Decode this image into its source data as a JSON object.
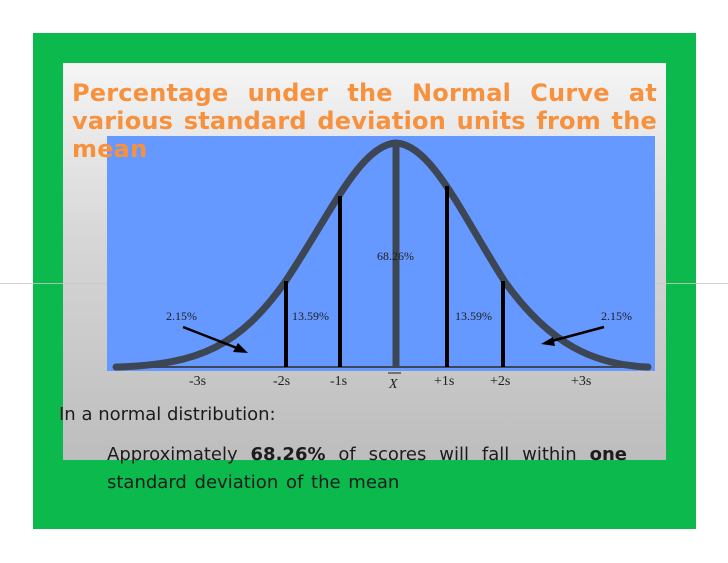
{
  "slide": {
    "title": "Percentage under the Normal Curve at various standard deviation units from the mean",
    "intro": "In a normal distribution:",
    "bullet": {
      "prefix": "Approximately",
      "emphasis_percent": "68.26%",
      "middle": "of scores will fall within",
      "emphasis_word": "one",
      "suffix": "standard deviation of the mean"
    }
  },
  "diagram": {
    "percent_labels": {
      "center": "68.26%",
      "left_inner": "13.59%",
      "right_inner": "13.59%",
      "left_tail": "2.15%",
      "right_tail": "2.15%"
    },
    "axis_labels": [
      "-3s",
      "-2s",
      "-1s",
      "X",
      "+1s",
      "+2s",
      "+3s"
    ]
  },
  "colors": {
    "slide_green": "#0cb94d",
    "title_orange": "#f7913d",
    "plot_blue": "#6699ff",
    "curve": "#3a4450"
  }
}
